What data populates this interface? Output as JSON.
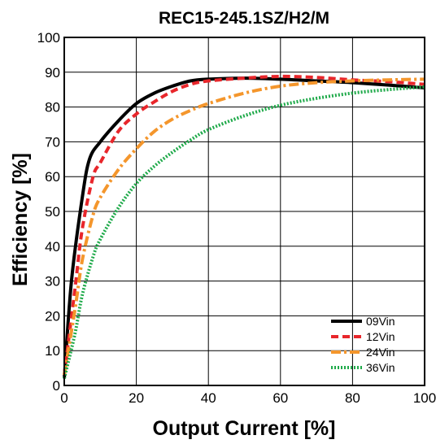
{
  "chart_data": {
    "type": "line",
    "title": "REC15-245.1SZ/H2/M",
    "xlabel": "Output Current [%]",
    "ylabel": "Efficiency [%]",
    "xlim": [
      0,
      100
    ],
    "ylim": [
      0,
      100
    ],
    "x_ticks": [
      "0",
      "20",
      "40",
      "60",
      "80",
      "100"
    ],
    "y_ticks": [
      "0",
      "10",
      "20",
      "30",
      "40",
      "50",
      "60",
      "70",
      "80",
      "90",
      "100"
    ],
    "grid": true,
    "legend_position": "bottom-right",
    "series": [
      {
        "name": "09Vin",
        "color": "#000000",
        "style": "solid",
        "x": [
          0,
          2,
          5,
          7,
          10,
          15,
          20,
          25,
          30,
          35,
          40,
          50,
          60,
          70,
          80,
          90,
          100
        ],
        "y": [
          2,
          30,
          54,
          65,
          70,
          76,
          81,
          84,
          86,
          87.5,
          88,
          88.3,
          88,
          87.5,
          87,
          86.3,
          85.5
        ]
      },
      {
        "name": "12Vin",
        "color": "#e8262b",
        "style": "dashed",
        "x": [
          0,
          3,
          5,
          8,
          10,
          15,
          20,
          25,
          30,
          35,
          40,
          50,
          60,
          70,
          80,
          90,
          100
        ],
        "y": [
          3,
          28,
          45,
          60,
          64,
          73,
          78,
          81.5,
          84.5,
          86.5,
          87.5,
          88.3,
          88.8,
          88.5,
          87.8,
          87.3,
          86.5
        ]
      },
      {
        "name": "24Vin",
        "color": "#f4962c",
        "style": "dashdot",
        "x": [
          0,
          3,
          5,
          8,
          10,
          15,
          20,
          25,
          30,
          35,
          40,
          50,
          60,
          70,
          80,
          90,
          100
        ],
        "y": [
          3,
          22,
          36,
          49,
          54,
          62,
          68,
          73,
          76.5,
          79,
          81,
          84,
          86,
          87,
          87.5,
          87.8,
          88
        ]
      },
      {
        "name": "36Vin",
        "color": "#1faa4a",
        "style": "dotted",
        "x": [
          0,
          3,
          5,
          8,
          10,
          15,
          20,
          25,
          30,
          35,
          40,
          50,
          60,
          70,
          80,
          90,
          100
        ],
        "y": [
          2,
          15,
          26,
          37,
          42,
          51,
          58,
          63,
          67,
          70.5,
          73.5,
          77.5,
          80.5,
          82.5,
          84,
          85,
          85.8
        ]
      }
    ]
  }
}
